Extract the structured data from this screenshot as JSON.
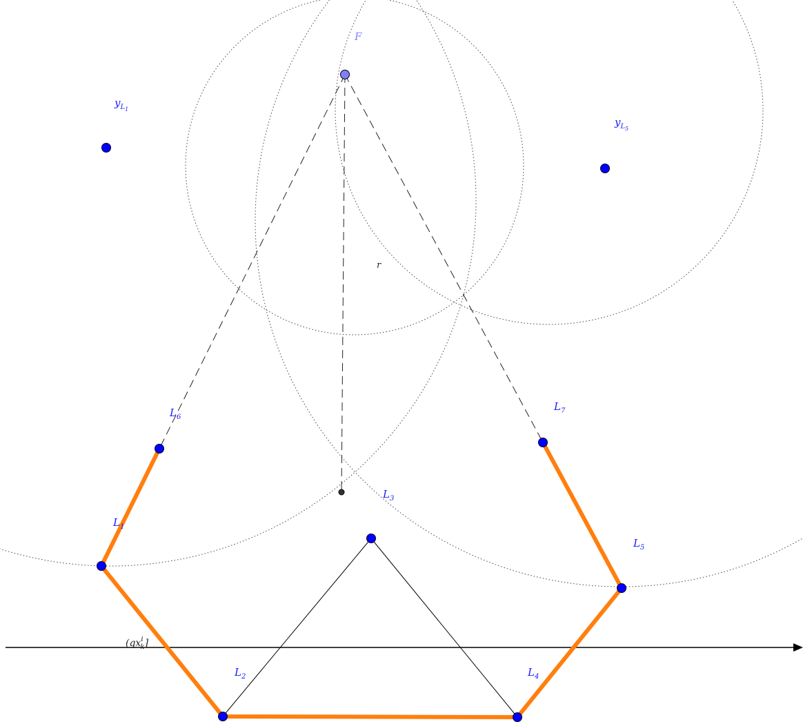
{
  "labels": {
    "F": "F",
    "r": "r",
    "y_L1_base": "y",
    "y_L1_sub": "L",
    "y_L1_subsub": "1",
    "y_L5_base": "y",
    "y_L5_sub": "L",
    "y_L5_subsub": "5",
    "L1_base": "L",
    "L1_sub": "1",
    "L2_base": "L",
    "L2_sub": "2",
    "L3_base": "L",
    "L3_sub": "3",
    "L4_base": "L",
    "L4_sub": "4",
    "L5_base": "L",
    "L5_sub": "5",
    "L6_base": "L",
    "L6_sub": "6",
    "L7_base": "L",
    "L7_sub": "7",
    "axis_label_open": "(qx",
    "axis_label_sup": "i",
    "axis_label_sub": "k",
    "axis_label_close": "]"
  },
  "colors": {
    "point_fill": "#0000ff",
    "focus_fill": "#8080ff",
    "polyline": "#ff7f0e",
    "label_blue": "#1a1aff"
  }
}
